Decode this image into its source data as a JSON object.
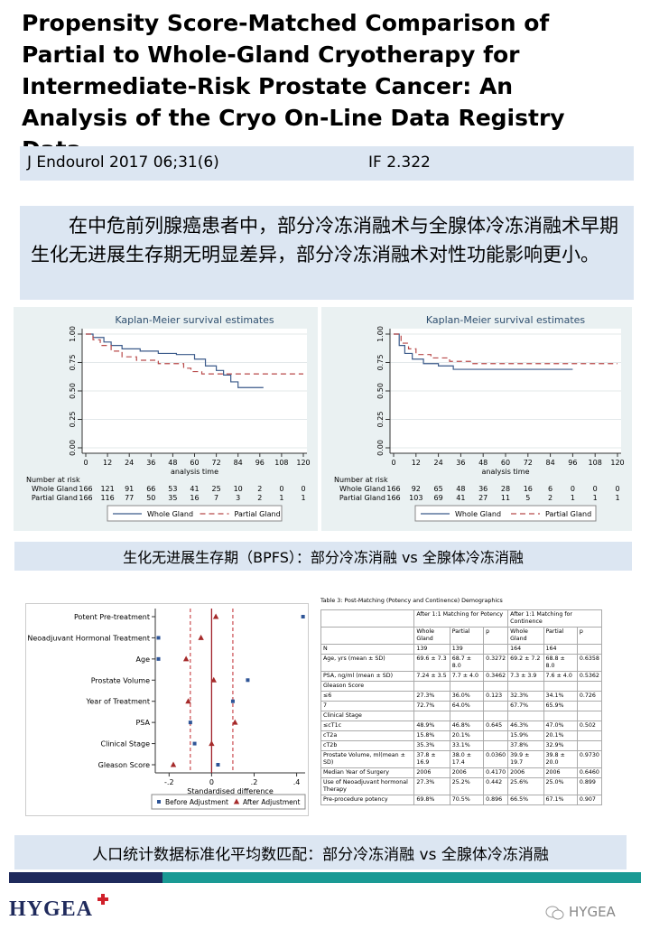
{
  "header": {
    "title": "Propensity Score-Matched Comparison of Partial to Whole-Gland Cryotherapy for Intermediate-Risk Prostate Cancer: An Analysis of the Cryo On-Line Data Registry Data",
    "journal": "J Endourol 2017 06;31(6)",
    "impact": "IF 2.322"
  },
  "summary": "在中危前列腺癌患者中，部分冷冻消融术与全腺体冷冻消融术早期生化无进展生存期无明显差异，部分冷冻消融术对性功能影响更小。",
  "km_plots": [
    {
      "type": "line",
      "title": "Kaplan-Meier survival estimates",
      "x_label": "analysis time",
      "xlim": [
        0,
        120
      ],
      "ylim": [
        0,
        1
      ],
      "xticks": [
        0,
        12,
        24,
        36,
        48,
        60,
        72,
        84,
        96,
        108,
        120
      ],
      "yticks": [
        {
          "value": 0,
          "label": "0.00"
        },
        {
          "value": 0.25,
          "label": "0.25"
        },
        {
          "value": 0.5,
          "label": "0.50"
        },
        {
          "value": 0.75,
          "label": "0.75"
        },
        {
          "value": 1,
          "label": "1.00"
        }
      ],
      "risk_title": "Number at risk",
      "risk_rows": [
        {
          "name": "Whole Gland",
          "values": [
            166,
            121,
            91,
            66,
            53,
            41,
            25,
            10,
            2,
            0,
            0
          ]
        },
        {
          "name": "Partial Gland",
          "values": [
            166,
            116,
            77,
            50,
            35,
            16,
            7,
            3,
            2,
            1,
            1
          ]
        }
      ],
      "series": [
        {
          "name": "Whole Gland",
          "color": "#3b5a8a",
          "x": [
            0,
            4,
            4,
            10,
            10,
            14,
            14,
            20,
            20,
            30,
            30,
            40,
            40,
            50,
            50,
            60,
            60,
            66,
            66,
            72,
            72,
            76,
            76,
            80,
            80,
            84,
            84,
            98
          ],
          "values": [
            1,
            1,
            0.97,
            0.97,
            0.93,
            0.93,
            0.9,
            0.9,
            0.87,
            0.87,
            0.85,
            0.85,
            0.83,
            0.83,
            0.82,
            0.82,
            0.78,
            0.78,
            0.72,
            0.72,
            0.68,
            0.68,
            0.64,
            0.64,
            0.58,
            0.58,
            0.53,
            0.53
          ]
        },
        {
          "name": "Partial Gland",
          "color": "#b84a4a",
          "dashed": true,
          "x": [
            0,
            4,
            4,
            8,
            8,
            14,
            14,
            20,
            20,
            28,
            28,
            40,
            40,
            54,
            54,
            58,
            58,
            64,
            64,
            120
          ],
          "values": [
            1,
            1,
            0.95,
            0.95,
            0.9,
            0.9,
            0.85,
            0.85,
            0.8,
            0.8,
            0.77,
            0.77,
            0.74,
            0.74,
            0.7,
            0.7,
            0.67,
            0.67,
            0.65,
            0.65
          ]
        }
      ]
    },
    {
      "type": "line",
      "title": "Kaplan-Meier survival estimates",
      "x_label": "analysis time",
      "xlim": [
        0,
        120
      ],
      "ylim": [
        0,
        1
      ],
      "xticks": [
        0,
        12,
        24,
        36,
        48,
        60,
        72,
        84,
        96,
        108,
        120
      ],
      "yticks": [
        {
          "value": 0,
          "label": "0.00"
        },
        {
          "value": 0.25,
          "label": "0.25"
        },
        {
          "value": 0.5,
          "label": "0.50"
        },
        {
          "value": 0.75,
          "label": "0.75"
        },
        {
          "value": 1,
          "label": "1.00"
        }
      ],
      "risk_title": "Number at risk",
      "risk_rows": [
        {
          "name": "Whole Gland",
          "values": [
            166,
            92,
            65,
            48,
            36,
            28,
            16,
            6,
            0,
            0,
            0
          ]
        },
        {
          "name": "Partial Gland",
          "values": [
            166,
            103,
            69,
            41,
            27,
            11,
            5,
            2,
            1,
            1,
            1
          ]
        }
      ],
      "series": [
        {
          "name": "Whole Gland",
          "color": "#3b5a8a",
          "x": [
            0,
            3,
            3,
            6,
            6,
            10,
            10,
            16,
            16,
            24,
            24,
            32,
            32,
            96
          ],
          "values": [
            1,
            1,
            0.9,
            0.9,
            0.83,
            0.83,
            0.78,
            0.78,
            0.74,
            0.74,
            0.72,
            0.72,
            0.69,
            0.69
          ]
        },
        {
          "name": "Partial Gland",
          "color": "#b84a4a",
          "dashed": true,
          "x": [
            0,
            4,
            4,
            8,
            8,
            12,
            12,
            20,
            20,
            30,
            30,
            42,
            42,
            120
          ],
          "values": [
            1,
            1,
            0.92,
            0.92,
            0.87,
            0.87,
            0.82,
            0.82,
            0.79,
            0.79,
            0.76,
            0.76,
            0.74,
            0.74
          ]
        }
      ]
    }
  ],
  "km_caption": "生化无进展生存期（BPFS）：部分冷冻消融 vs 全腺体冷冻消融",
  "forest_plot": {
    "type": "scatter",
    "x_label": "Standardised difference",
    "xlim": [
      -0.265,
      0.44
    ],
    "xticks": [
      {
        "value": -0.2,
        "label": "-.2"
      },
      0,
      {
        "value": 0.2,
        "label": ".2"
      },
      {
        "value": 0.4,
        "label": ".4"
      }
    ],
    "threshold_lines": [
      -0.1,
      0.1
    ],
    "categories": [
      "Potent Pre-treatment",
      "Neoadjuvant Hormonal Treatment",
      "Age",
      "Prostate Volume",
      "Year of Treatment",
      "PSA",
      "Clinical Stage",
      "Gleason Score"
    ],
    "series": [
      {
        "name": "Before Adjustment",
        "color": "#2f5597",
        "marker": "square",
        "values": [
          0.43,
          -0.25,
          -0.25,
          0.17,
          0.1,
          -0.1,
          -0.08,
          0.03
        ]
      },
      {
        "name": "After Adjustment",
        "color": "#a52a2a",
        "marker": "triangle",
        "values": [
          0.02,
          -0.05,
          -0.12,
          0.01,
          -0.11,
          0.11,
          0,
          -0.18
        ]
      }
    ]
  },
  "table": {
    "title": "Table 3: Post-Matching (Potency and Continence) Demographics",
    "groups": [
      "After 1:1 Matching for Potency",
      "After 1:1 Matching for Continence"
    ],
    "columns": [
      "Whole Gland",
      "Partial",
      "p",
      "Whole Gland",
      "Partial",
      "p"
    ],
    "rows": [
      [
        "N",
        "139",
        "139",
        null,
        "164",
        "164",
        null
      ],
      [
        "Age, yrs (mean ± SD)",
        "69.6 ± 7.3",
        "68.7 ± 8.0",
        "0.3272",
        "69.2 ± 7.2",
        "68.8 ± 8.0",
        "0.6358"
      ],
      [
        "PSA, ng/ml (mean ± SD)",
        "7.24 ± 3.5",
        "7.7 ± 4.0",
        "0.3462",
        "7.3 ± 3.9",
        "7.6 ± 4.0",
        "0.5362"
      ],
      [
        "Gleason Score",
        null,
        null,
        null,
        null,
        null,
        null
      ],
      [
        "≤6",
        "27.3%",
        "36.0%",
        "0.123",
        "32.3%",
        "34.1%",
        "0.726"
      ],
      [
        "7",
        "72.7%",
        "64.0%",
        null,
        "67.7%",
        "65.9%",
        null
      ],
      [
        "Clinical Stage",
        null,
        null,
        null,
        null,
        null,
        null
      ],
      [
        "≤cT1c",
        "48.9%",
        "46.8%",
        "0.645",
        "46.3%",
        "47.0%",
        "0.502"
      ],
      [
        "cT2a",
        "15.8%",
        "20.1%",
        null,
        "15.9%",
        "20.1%",
        null
      ],
      [
        "cT2b",
        "35.3%",
        "33.1%",
        null,
        "37.8%",
        "32.9%",
        null
      ],
      [
        "Prostate Volume, ml(mean ± SD)",
        "37.8 ± 16.9",
        "38.0 ± 17.4",
        "0.0360",
        "39.9 ± 19.7",
        "39.8 ± 20.0",
        "0.9730"
      ],
      [
        "Median Year of Surgery",
        "2006",
        "2006",
        "0.4170",
        "2006",
        "2006",
        "0.6460"
      ],
      [
        "Use of Neoadjuvant hormonal Therapy",
        "27.3%",
        "25.2%",
        "0.442",
        "25.6%",
        "25.0%",
        "0.899"
      ],
      [
        "Pre-procedure potency",
        "69.8%",
        "70.5%",
        "0.896",
        "66.5%",
        "67.1%",
        "0.907"
      ]
    ]
  },
  "table_caption": "人口统计数据标准化平均数匹配：部分冷冻消融 vs 全腺体冷冻消融",
  "footer": {
    "logo": "HYGEA",
    "watermark": "HYGEA"
  }
}
